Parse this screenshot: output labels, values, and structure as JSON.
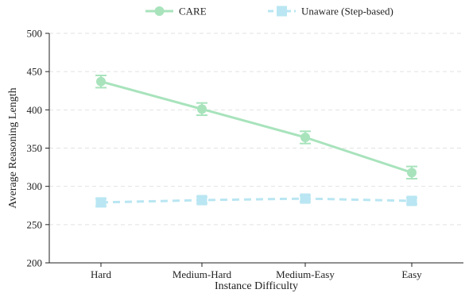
{
  "chart_data": {
    "type": "line",
    "title": "",
    "xlabel": "Instance Difficulty",
    "ylabel": "Average Reasoning Length",
    "categories": [
      "Hard",
      "Medium-Hard",
      "Medium-Easy",
      "Easy"
    ],
    "ylim": [
      200,
      500
    ],
    "yticks": [
      200,
      250,
      300,
      350,
      400,
      450,
      500
    ],
    "grid": "horizontal-dashed",
    "legend_position": "top-center",
    "series": [
      {
        "name": "CARE",
        "values": [
          437,
          401,
          364,
          318
        ],
        "error": [
          8,
          8,
          8,
          8
        ],
        "color": "#a8e3bc",
        "marker": "circle",
        "line_style": "solid"
      },
      {
        "name": "Unaware (Step-based)",
        "values": [
          279,
          282,
          284,
          281
        ],
        "error": [
          5,
          4,
          4,
          4
        ],
        "color": "#b9e6f2",
        "marker": "square",
        "line_style": "dashed"
      }
    ]
  }
}
